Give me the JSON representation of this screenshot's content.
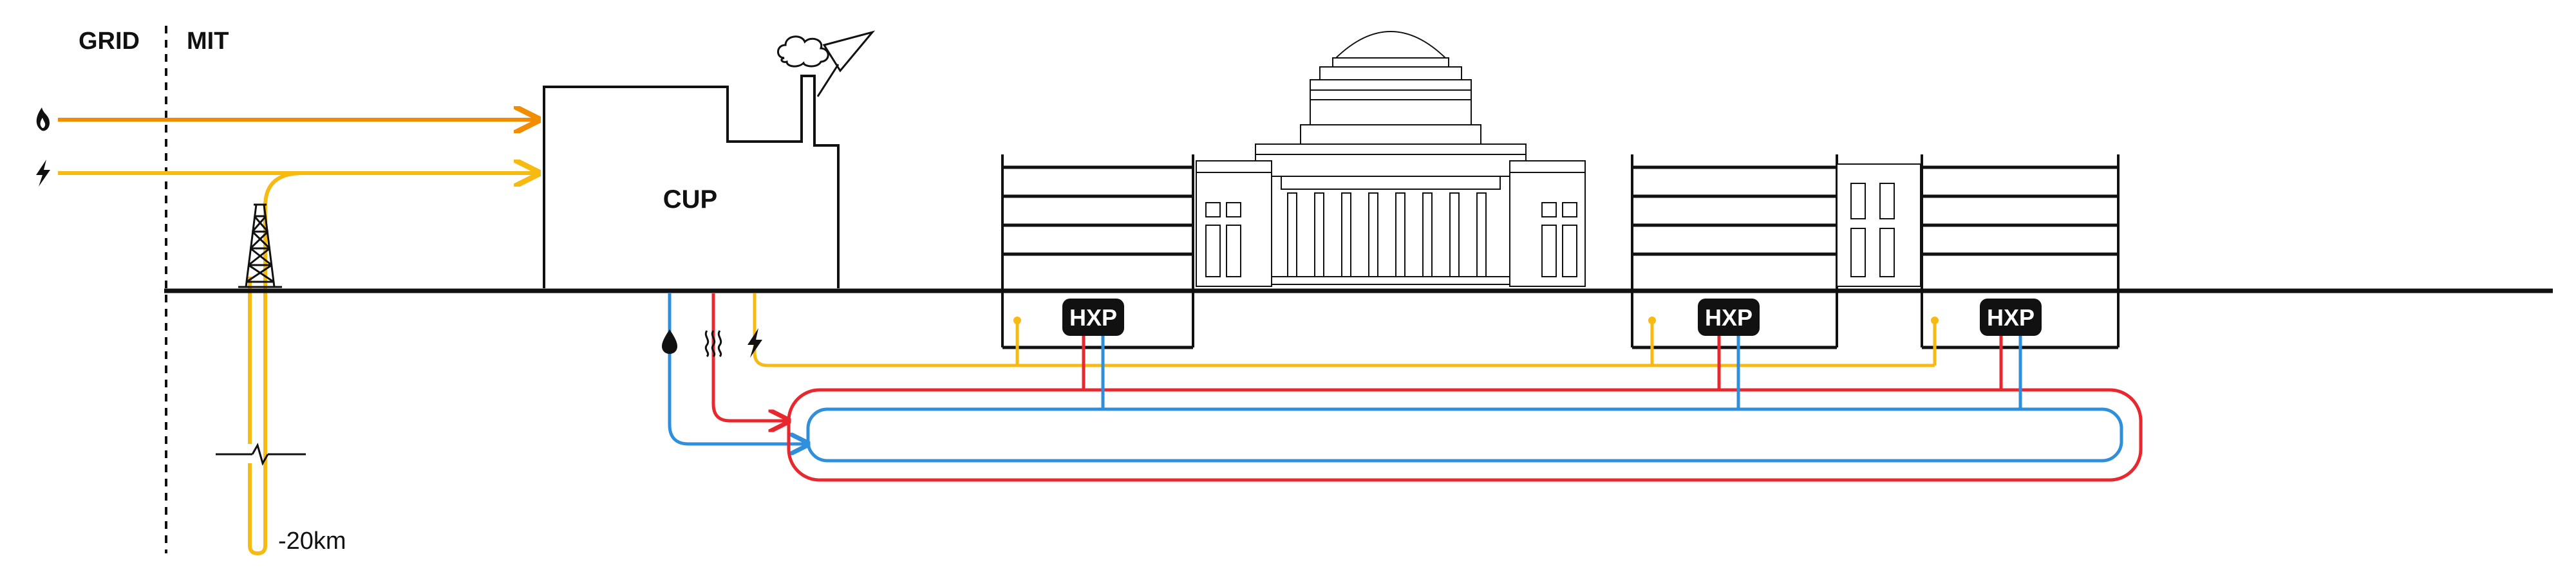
{
  "labels": {
    "grid": "GRID",
    "mit": "MIT",
    "cup": "CUP",
    "hxp_1": "HXP",
    "hxp_2": "HXP",
    "hxp_3": "HXP",
    "depth": "-20km"
  },
  "icons": {
    "gas": "flame-icon",
    "electricity_in": "lightning-icon",
    "water": "water-drop-icon",
    "heat": "heat-waves-icon",
    "electricity_out": "lightning-icon",
    "geothermal_rig": "drilling-rig-icon"
  },
  "colors": {
    "gas_line": "#F28C00",
    "electric_line": "#F7BA12",
    "hot_loop": "#E8282E",
    "cold_loop": "#2F8FDB",
    "structure": "#000000",
    "hxp_badge": "#000000"
  }
}
